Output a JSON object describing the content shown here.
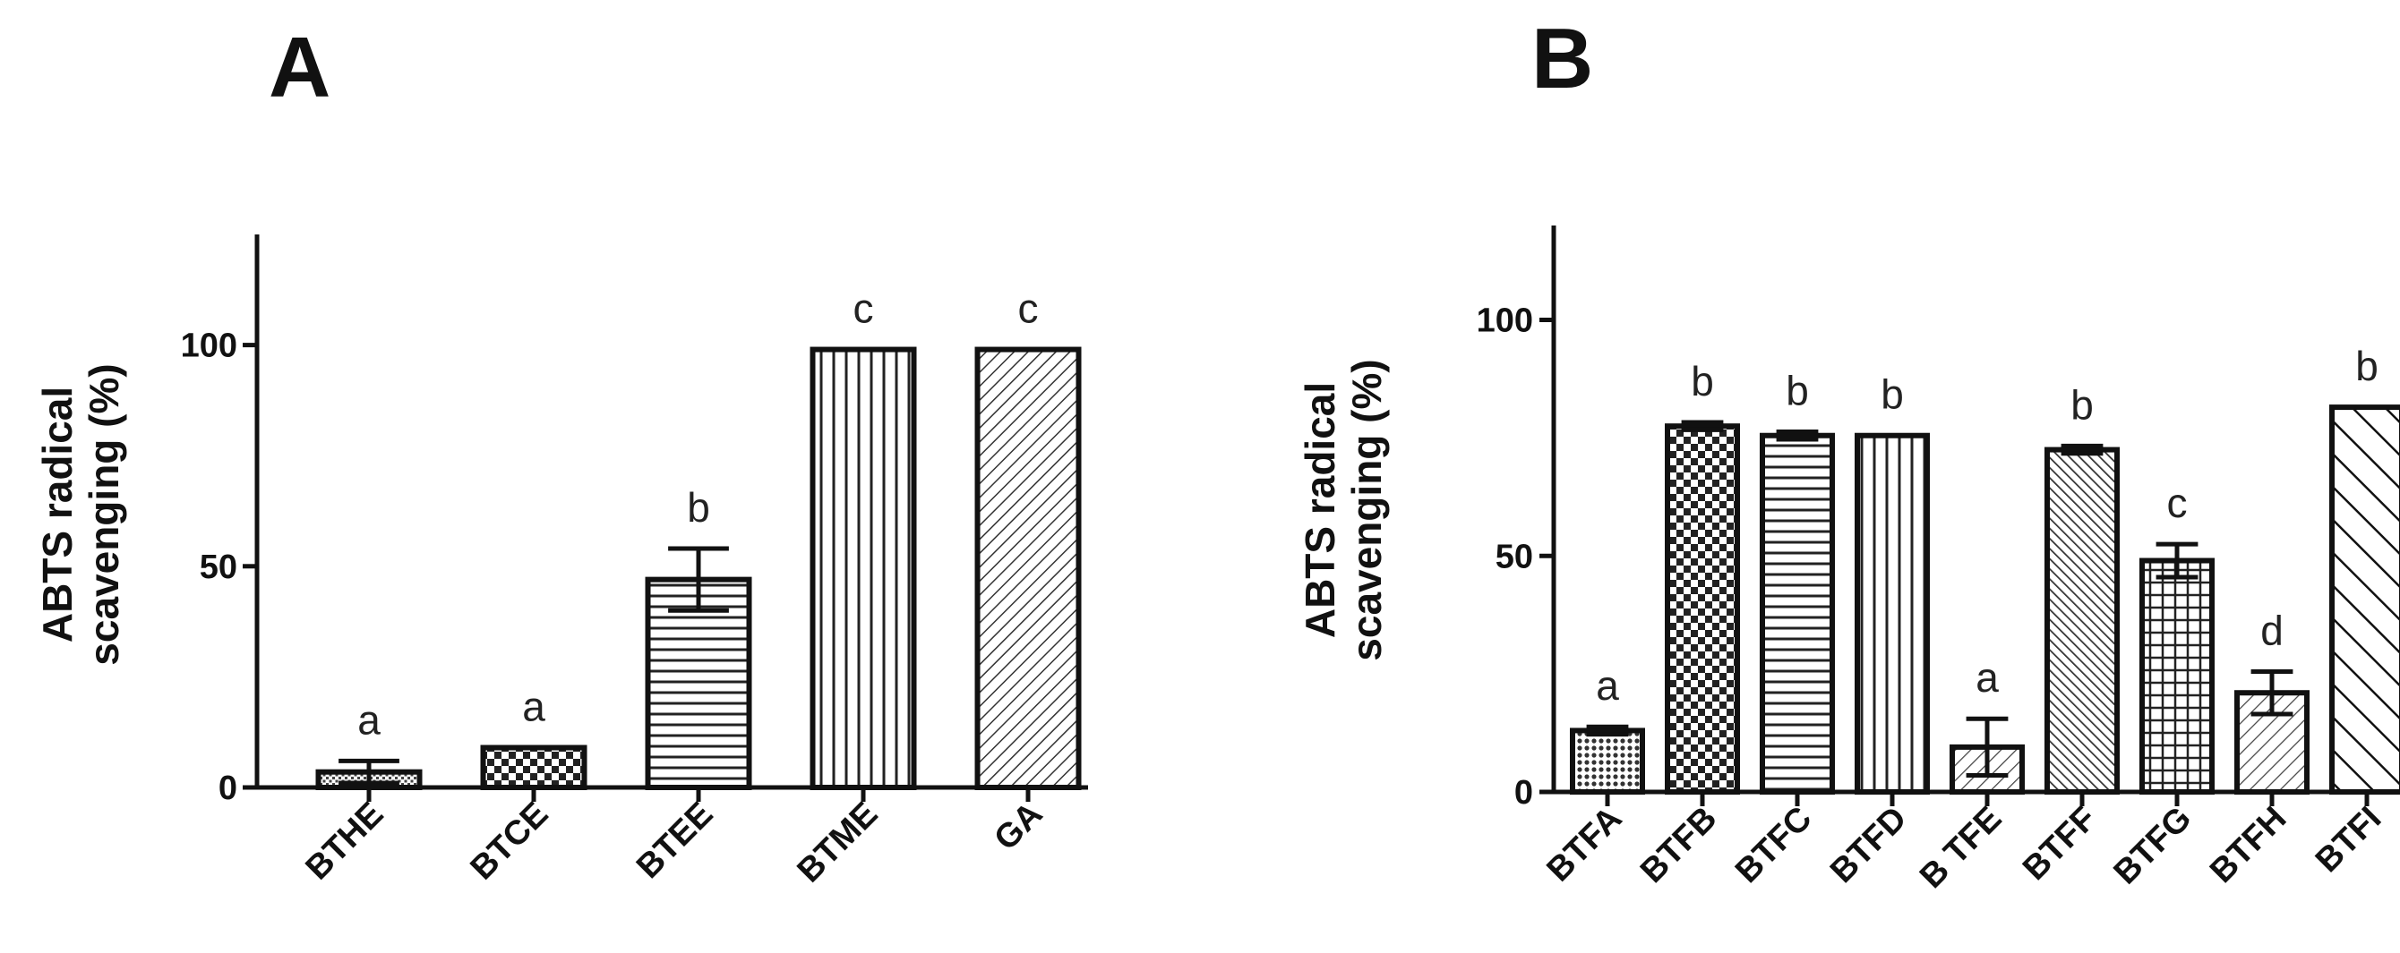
{
  "chart_data": [
    {
      "type": "bar",
      "panel": "A",
      "ylabel": [
        "ABTS radical",
        "scavenging (%)"
      ],
      "ylim": [
        0,
        125
      ],
      "yticks": [
        0,
        50,
        100
      ],
      "categories": [
        "BTHE",
        "BTCE",
        "BTEE",
        "BTME",
        "GA"
      ],
      "values": [
        3.5,
        9,
        47,
        99,
        99
      ],
      "errors": [
        2.5,
        0,
        7,
        0,
        0
      ],
      "significance": [
        "a",
        "a",
        "b",
        "c",
        "c"
      ],
      "patterns": [
        "fine",
        "checker",
        "hlines",
        "vlines",
        "diag"
      ]
    },
    {
      "type": "bar",
      "panel": "B",
      "ylabel": [
        "ABTS radical",
        "scavenging (%)"
      ],
      "ylim": [
        0,
        120
      ],
      "yticks": [
        0,
        50,
        100
      ],
      "categories": [
        "BTFA",
        "BTFB",
        "BTFC",
        "BTFD",
        "B TFE",
        "BTFF",
        "BTFG",
        "BTFH",
        "BTFI"
      ],
      "values": [
        13,
        77.5,
        75.5,
        75.5,
        9.5,
        72.5,
        49,
        21,
        81.5
      ],
      "errors": [
        0.8,
        0.8,
        0.8,
        0,
        6,
        0.8,
        3.5,
        4.5,
        0
      ],
      "significance": [
        "a",
        "b",
        "b",
        "b",
        "a",
        "b",
        "c",
        "d",
        "b"
      ],
      "patterns": [
        "dots",
        "checker",
        "hlines",
        "vlines",
        "diag-light",
        "diag-dense",
        "grid",
        "diag-light",
        "diag-wide"
      ]
    }
  ]
}
